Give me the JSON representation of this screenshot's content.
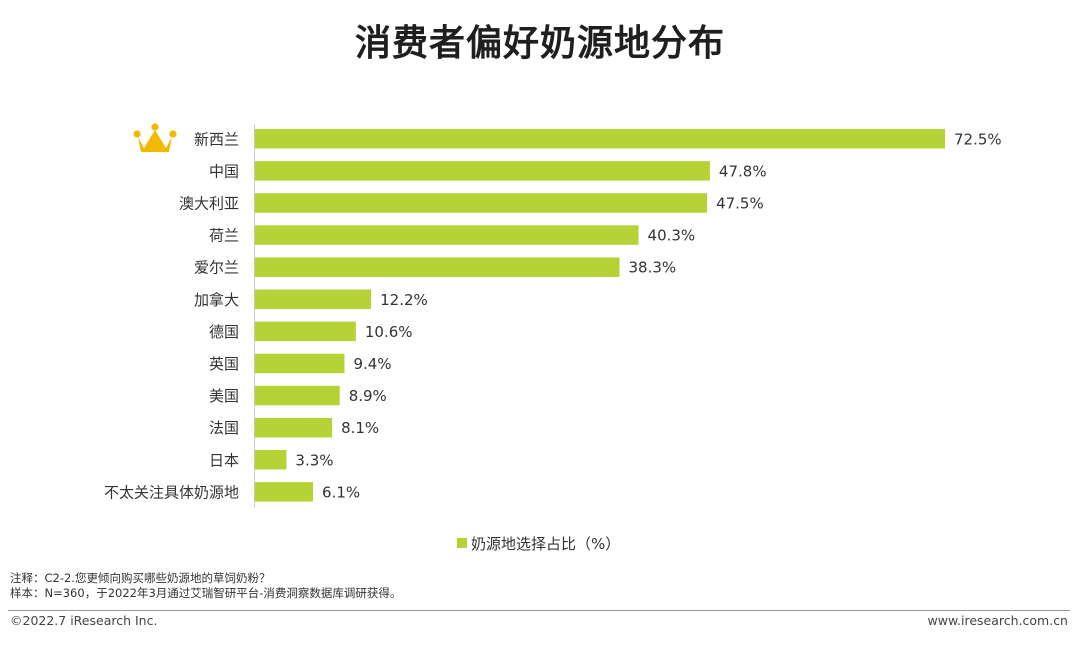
{
  "title": "消费者偏好奶源地分布",
  "chart_data": {
    "type": "bar",
    "orientation": "horizontal",
    "title": "消费者偏好奶源地分布",
    "categories": [
      "新西兰",
      "中国",
      "澳大利亚",
      "荷兰",
      "爱尔兰",
      "加拿大",
      "德国",
      "英国",
      "美国",
      "法国",
      "日本",
      "不太关注具体奶源地"
    ],
    "series": [
      {
        "name": "奶源地选择占比（%）",
        "values": [
          72.5,
          47.8,
          47.5,
          40.3,
          38.3,
          12.2,
          10.6,
          9.4,
          8.9,
          8.1,
          3.3,
          6.1
        ],
        "value_labels": [
          "72.5%",
          "47.8%",
          "47.5%",
          "40.3%",
          "38.3%",
          "12.2%",
          "10.6%",
          "9.4%",
          "8.9%",
          "8.1%",
          "3.3%",
          "6.1%"
        ]
      }
    ],
    "xlim": [
      0,
      72.5
    ],
    "grid": false,
    "legend_position": "bottom",
    "bar_color": "#b5d334",
    "crown_color": "#f3b800",
    "top_category_icon": "crown-icon"
  },
  "notes": {
    "line1": "注释：C2-2.您更倾向购买哪些奶源地的草饲奶粉？",
    "line2": "样本：N=360，于2022年3月通过艾瑞智研平台-消费洞察数据库调研获得。"
  },
  "footer": {
    "copyright": "©2022.7 iResearch Inc.",
    "website": "www.iresearch.com.cn"
  }
}
